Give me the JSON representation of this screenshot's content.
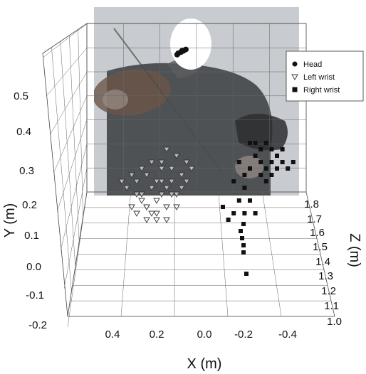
{
  "chart_data": {
    "type": "scatter",
    "projection": "3d",
    "title": "",
    "xlabel": "X (m)",
    "ylabel": "Y (m)",
    "zlabel": "Z (m)",
    "x_ticks": [
      "0.4",
      "0.2",
      "0.0",
      "-0.2",
      "-0.4"
    ],
    "y_ticks": [
      "-0.2",
      "-0.1",
      "0.0",
      "0.1",
      "0.2",
      "0.3",
      "0.4",
      "0.5"
    ],
    "z_ticks": [
      "1.0",
      "1.1",
      "1.2",
      "1.3",
      "1.4",
      "1.5",
      "1.6",
      "1.7",
      "1.8"
    ],
    "xlim": [
      0.55,
      -0.55
    ],
    "ylim": [
      -0.2,
      0.5
    ],
    "zlim": [
      1.0,
      1.8
    ],
    "grid": true,
    "legend_position": "top-right",
    "background_image": "violinist-photo",
    "series": [
      {
        "name": "Head",
        "marker": "circle-filled",
        "color": "#111111",
        "points": [
          {
            "x": 0.04,
            "y": 0.5,
            "z": 1.78
          },
          {
            "x": 0.03,
            "y": 0.51,
            "z": 1.78
          },
          {
            "x": 0.02,
            "y": 0.52,
            "z": 1.78
          },
          {
            "x": 0.01,
            "y": 0.52,
            "z": 1.78
          },
          {
            "x": 0.0,
            "y": 0.53,
            "z": 1.78
          },
          {
            "x": 0.05,
            "y": 0.49,
            "z": 1.78
          }
        ]
      },
      {
        "name": "Left wrist",
        "marker": "triangle-down-open",
        "color": "#333333",
        "points": [
          {
            "x": 0.3,
            "y": 0.26,
            "z": 1.4
          },
          {
            "x": 0.28,
            "y": 0.24,
            "z": 1.4
          },
          {
            "x": 0.26,
            "y": 0.22,
            "z": 1.4
          },
          {
            "x": 0.24,
            "y": 0.2,
            "z": 1.4
          },
          {
            "x": 0.22,
            "y": 0.18,
            "z": 1.4
          },
          {
            "x": 0.2,
            "y": 0.26,
            "z": 1.4
          },
          {
            "x": 0.18,
            "y": 0.28,
            "z": 1.4
          },
          {
            "x": 0.22,
            "y": 0.3,
            "z": 1.4
          },
          {
            "x": 0.26,
            "y": 0.32,
            "z": 1.4
          },
          {
            "x": 0.2,
            "y": 0.34,
            "z": 1.4
          },
          {
            "x": 0.16,
            "y": 0.3,
            "z": 1.4
          },
          {
            "x": 0.14,
            "y": 0.26,
            "z": 1.4
          },
          {
            "x": 0.18,
            "y": 0.22,
            "z": 1.4
          },
          {
            "x": 0.3,
            "y": 0.3,
            "z": 1.4
          },
          {
            "x": 0.32,
            "y": 0.22,
            "z": 1.4
          },
          {
            "x": 0.12,
            "y": 0.32,
            "z": 1.4
          },
          {
            "x": 0.24,
            "y": 0.36,
            "z": 1.4
          },
          {
            "x": 0.28,
            "y": 0.34,
            "z": 1.4
          },
          {
            "x": 0.1,
            "y": 0.36,
            "z": 1.4
          },
          {
            "x": 0.14,
            "y": 0.38,
            "z": 1.4
          },
          {
            "x": 0.34,
            "y": 0.28,
            "z": 1.4
          },
          {
            "x": 0.22,
            "y": 0.24,
            "z": 1.4
          },
          {
            "x": 0.18,
            "y": 0.18,
            "z": 1.4
          },
          {
            "x": 0.26,
            "y": 0.18,
            "z": 1.4
          },
          {
            "x": 0.16,
            "y": 0.34,
            "z": 1.4
          },
          {
            "x": 0.2,
            "y": 0.3,
            "z": 1.4
          },
          {
            "x": 0.24,
            "y": 0.28,
            "z": 1.4
          },
          {
            "x": 0.28,
            "y": 0.26,
            "z": 1.4
          },
          {
            "x": 0.12,
            "y": 0.28,
            "z": 1.4
          },
          {
            "x": 0.32,
            "y": 0.32,
            "z": 1.4
          },
          {
            "x": 0.18,
            "y": 0.4,
            "z": 1.4
          },
          {
            "x": 0.08,
            "y": 0.34,
            "z": 1.4
          },
          {
            "x": 0.26,
            "y": 0.22,
            "z": 1.4
          },
          {
            "x": 0.22,
            "y": 0.2,
            "z": 1.4
          },
          {
            "x": 0.14,
            "y": 0.22,
            "z": 1.4
          },
          {
            "x": 0.3,
            "y": 0.2,
            "z": 1.4
          },
          {
            "x": 0.36,
            "y": 0.3,
            "z": 1.4
          },
          {
            "x": 0.1,
            "y": 0.3,
            "z": 1.4
          },
          {
            "x": 0.2,
            "y": 0.36,
            "z": 1.4
          },
          {
            "x": 0.16,
            "y": 0.26,
            "z": 1.4
          }
        ]
      },
      {
        "name": "Right wrist",
        "marker": "square-filled",
        "color": "#111111",
        "points": [
          {
            "x": -0.34,
            "y": 0.38,
            "z": 1.4
          },
          {
            "x": -0.36,
            "y": 0.36,
            "z": 1.4
          },
          {
            "x": -0.38,
            "y": 0.34,
            "z": 1.4
          },
          {
            "x": -0.4,
            "y": 0.36,
            "z": 1.4
          },
          {
            "x": -0.42,
            "y": 0.38,
            "z": 1.4
          },
          {
            "x": -0.44,
            "y": 0.36,
            "z": 1.4
          },
          {
            "x": -0.32,
            "y": 0.34,
            "z": 1.4
          },
          {
            "x": -0.3,
            "y": 0.32,
            "z": 1.4
          },
          {
            "x": -0.36,
            "y": 0.4,
            "z": 1.4
          },
          {
            "x": -0.4,
            "y": 0.32,
            "z": 1.4
          },
          {
            "x": -0.46,
            "y": 0.34,
            "z": 1.4
          },
          {
            "x": -0.34,
            "y": 0.42,
            "z": 1.4
          },
          {
            "x": -0.38,
            "y": 0.3,
            "z": 1.4
          },
          {
            "x": -0.42,
            "y": 0.34,
            "z": 1.4
          },
          {
            "x": -0.3,
            "y": 0.28,
            "z": 1.4
          },
          {
            "x": -0.28,
            "y": 0.24,
            "z": 1.4
          },
          {
            "x": -0.26,
            "y": 0.2,
            "z": 1.4
          },
          {
            "x": -0.24,
            "y": 0.18,
            "z": 1.4
          },
          {
            "x": -0.3,
            "y": 0.2,
            "z": 1.4
          },
          {
            "x": -0.32,
            "y": 0.24,
            "z": 1.4
          },
          {
            "x": -0.22,
            "y": 0.22,
            "z": 1.4
          },
          {
            "x": -0.34,
            "y": 0.2,
            "z": 1.4
          },
          {
            "x": -0.28,
            "y": 0.36,
            "z": 1.4
          },
          {
            "x": -0.26,
            "y": 0.3,
            "z": 1.4
          },
          {
            "x": -0.44,
            "y": 0.4,
            "z": 1.4
          },
          {
            "x": -0.48,
            "y": 0.36,
            "z": 1.4
          },
          {
            "x": -0.4,
            "y": 0.4,
            "z": 1.4
          },
          {
            "x": -0.36,
            "y": 0.32,
            "z": 1.4
          },
          {
            "x": -0.22,
            "y": 0.1,
            "z": 1.4
          },
          {
            "x": -0.23,
            "y": 0.08,
            "z": 1.4
          },
          {
            "x": -0.24,
            "y": 0.06,
            "z": 1.4
          },
          {
            "x": -0.24,
            "y": 0.04,
            "z": 1.4
          },
          {
            "x": -0.26,
            "y": -0.02,
            "z": 1.4
          },
          {
            "x": -0.24,
            "y": 0.12,
            "z": 1.4
          },
          {
            "x": -0.32,
            "y": 0.42,
            "z": 1.4
          },
          {
            "x": -0.38,
            "y": 0.42,
            "z": 1.4
          }
        ]
      }
    ]
  }
}
